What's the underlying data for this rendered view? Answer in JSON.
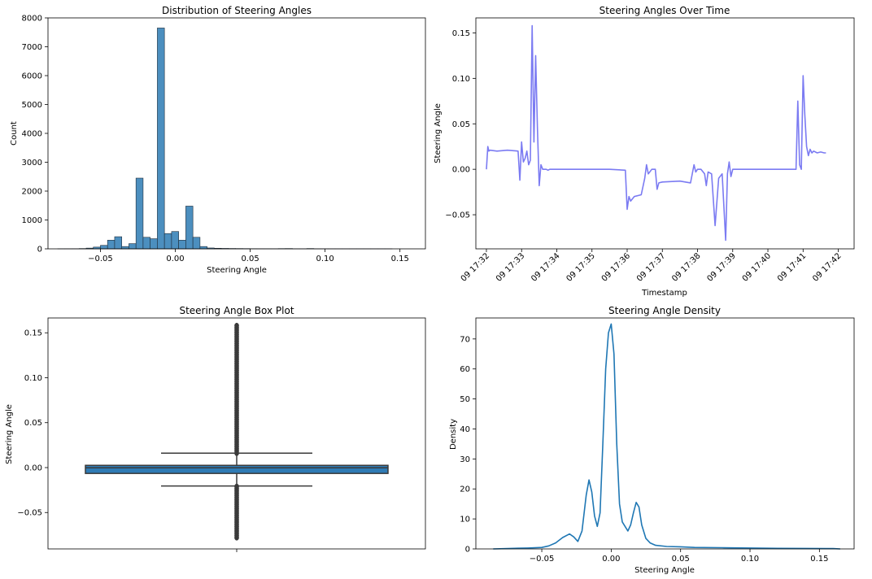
{
  "chart_data": [
    {
      "type": "histogram",
      "title": "Distribution of Steering Angles",
      "xlabel": "Steering Angle",
      "ylabel": "Count",
      "xlim": [
        -0.085,
        0.167
      ],
      "ylim": [
        0,
        8000
      ],
      "xticks": [
        -0.05,
        0.0,
        0.05,
        0.1,
        0.15
      ],
      "xtick_labels": [
        "−0.05",
        "0.00",
        "0.05",
        "0.10",
        "0.15"
      ],
      "yticks": [
        0,
        1000,
        2000,
        3000,
        4000,
        5000,
        6000,
        7000,
        8000
      ],
      "ytick_labels": [
        "0",
        "1000",
        "2000",
        "3000",
        "4000",
        "5000",
        "6000",
        "7000",
        "8000"
      ],
      "bin_start": -0.0785,
      "bin_width": 0.00475,
      "counts": [
        2,
        3,
        5,
        10,
        25,
        60,
        120,
        300,
        420,
        80,
        180,
        2450,
        400,
        350,
        7650,
        530,
        600,
        300,
        1480,
        400,
        80,
        30,
        20,
        15,
        12,
        10,
        8,
        6,
        5,
        4,
        3,
        8,
        10,
        2,
        1,
        10,
        2,
        1,
        1,
        1,
        1,
        1,
        1,
        1,
        1,
        1,
        1
      ],
      "bar_color": "#4c8fbf",
      "edge_color": "#1f2d3a"
    },
    {
      "type": "line",
      "title": "Steering Angles Over Time",
      "xlabel": "Timestamp",
      "ylabel": "Steering Angle",
      "xlim": [
        -0.3,
        10.45
      ],
      "ylim": [
        -0.0875,
        0.1665
      ],
      "xticks": [
        0,
        1,
        2,
        3,
        4,
        5,
        6,
        7,
        8,
        9,
        10
      ],
      "xtick_labels": [
        "09 17:32",
        "09 17:33",
        "09 17:34",
        "09 17:35",
        "09 17:36",
        "09 17:37",
        "09 17:38",
        "09 17:39",
        "09 17:40",
        "09 17:41",
        "09 17:42"
      ],
      "yticks": [
        -0.05,
        0.0,
        0.05,
        0.1,
        0.15
      ],
      "ytick_labels": [
        "−0.05",
        "0.00",
        "0.05",
        "0.10",
        "0.15"
      ],
      "line_color": "#7b7bf2",
      "x": [
        0,
        0.04,
        0.07,
        0.1,
        0.3,
        0.6,
        0.9,
        0.95,
        1.0,
        1.05,
        1.1,
        1.15,
        1.2,
        1.25,
        1.3,
        1.35,
        1.4,
        1.45,
        1.5,
        1.55,
        1.6,
        1.65,
        1.7,
        1.75,
        1.8,
        2.0,
        2.5,
        3.0,
        3.5,
        3.95,
        4.0,
        4.05,
        4.1,
        4.2,
        4.4,
        4.5,
        4.55,
        4.6,
        4.7,
        4.8,
        4.85,
        4.9,
        5.0,
        5.5,
        5.8,
        5.9,
        5.95,
        6.0,
        6.1,
        6.2,
        6.25,
        6.3,
        6.4,
        6.5,
        6.6,
        6.7,
        6.8,
        6.85,
        6.9,
        6.95,
        7.0,
        7.05,
        7.1,
        7.15,
        7.2,
        7.25,
        7.3,
        7.35,
        7.4,
        7.5,
        8.0,
        8.5,
        8.8,
        8.85,
        8.9,
        8.95,
        9.0,
        9.05,
        9.1,
        9.15,
        9.2,
        9.25,
        9.3,
        9.4,
        9.5,
        9.6,
        9.65
      ],
      "y": [
        0.0,
        0.025,
        0.02,
        0.021,
        0.02,
        0.021,
        0.02,
        -0.012,
        0.03,
        0.008,
        0.012,
        0.02,
        0.005,
        0.01,
        0.158,
        0.03,
        0.125,
        0.045,
        -0.018,
        0.005,
        0.0,
        0.0,
        0.0,
        -0.001,
        0.0,
        0.0,
        0.0,
        0.0,
        0.0,
        -0.001,
        -0.044,
        -0.03,
        -0.035,
        -0.03,
        -0.028,
        -0.01,
        0.005,
        -0.005,
        0.0,
        0.0,
        -0.022,
        -0.015,
        -0.014,
        -0.013,
        -0.015,
        0.005,
        -0.003,
        0.0,
        0.0,
        -0.005,
        -0.018,
        -0.003,
        -0.005,
        -0.062,
        -0.01,
        -0.005,
        -0.078,
        -0.005,
        0.008,
        -0.008,
        0.0,
        0.0,
        0.0,
        0.0,
        0.0,
        0.0,
        0.0,
        0.0,
        0.0,
        0.0,
        0.0,
        0.0,
        0.0,
        0.075,
        0.005,
        0.0,
        0.103,
        0.06,
        0.025,
        0.015,
        0.022,
        0.018,
        0.02,
        0.018,
        0.019,
        0.018,
        0.018
      ]
    },
    {
      "type": "box",
      "title": "Steering Angle Box Plot",
      "ylabel": "Steering Angle",
      "ylim": [
        -0.0905,
        0.1665
      ],
      "yticks": [
        -0.05,
        0.0,
        0.05,
        0.1,
        0.15
      ],
      "ytick_labels": [
        "−0.05",
        "0.00",
        "0.05",
        "0.10",
        "0.15"
      ],
      "q1": -0.0065,
      "median": -0.0002,
      "q3": 0.0025,
      "whisker_low": -0.0205,
      "whisker_high": 0.016,
      "outliers_high_range": [
        0.016,
        0.158
      ],
      "outliers_low_range": [
        -0.078,
        -0.021
      ],
      "box_color": "#2f7bb5",
      "line_color": "#3a3a3a"
    },
    {
      "type": "line",
      "title": "Steering Angle Density",
      "xlabel": "Steering Angle",
      "ylabel": "Density",
      "xlim": [
        -0.0975,
        0.175
      ],
      "ylim": [
        0,
        77
      ],
      "xticks": [
        -0.05,
        0.0,
        0.05,
        0.1,
        0.15
      ],
      "xtick_labels": [
        "−0.05",
        "0.00",
        "0.05",
        "0.10",
        "0.15"
      ],
      "yticks": [
        0,
        10,
        20,
        30,
        40,
        50,
        60,
        70
      ],
      "ytick_labels": [
        "0",
        "10",
        "20",
        "30",
        "40",
        "50",
        "60",
        "70"
      ],
      "line_color": "#1f77b4",
      "x": [
        -0.085,
        -0.07,
        -0.06,
        -0.05,
        -0.045,
        -0.04,
        -0.035,
        -0.03,
        -0.027,
        -0.024,
        -0.021,
        -0.018,
        -0.016,
        -0.014,
        -0.012,
        -0.01,
        -0.008,
        -0.006,
        -0.004,
        -0.002,
        0.0,
        0.002,
        0.004,
        0.006,
        0.008,
        0.01,
        0.012,
        0.014,
        0.016,
        0.018,
        0.02,
        0.022,
        0.025,
        0.028,
        0.032,
        0.04,
        0.05,
        0.06,
        0.08,
        0.1,
        0.12,
        0.14,
        0.16,
        0.165
      ],
      "y": [
        0.0,
        0.2,
        0.3,
        0.5,
        1.0,
        2.0,
        3.8,
        5.0,
        4.0,
        2.5,
        6.0,
        18.0,
        23.0,
        19.0,
        11.0,
        7.5,
        12.0,
        35.0,
        60.0,
        72.0,
        75.0,
        65.0,
        35.0,
        15.0,
        9.0,
        7.5,
        6.0,
        8.0,
        12.0,
        15.5,
        14.0,
        8.0,
        3.5,
        2.0,
        1.2,
        0.8,
        0.7,
        0.5,
        0.4,
        0.3,
        0.2,
        0.15,
        0.1,
        0.0
      ]
    }
  ]
}
